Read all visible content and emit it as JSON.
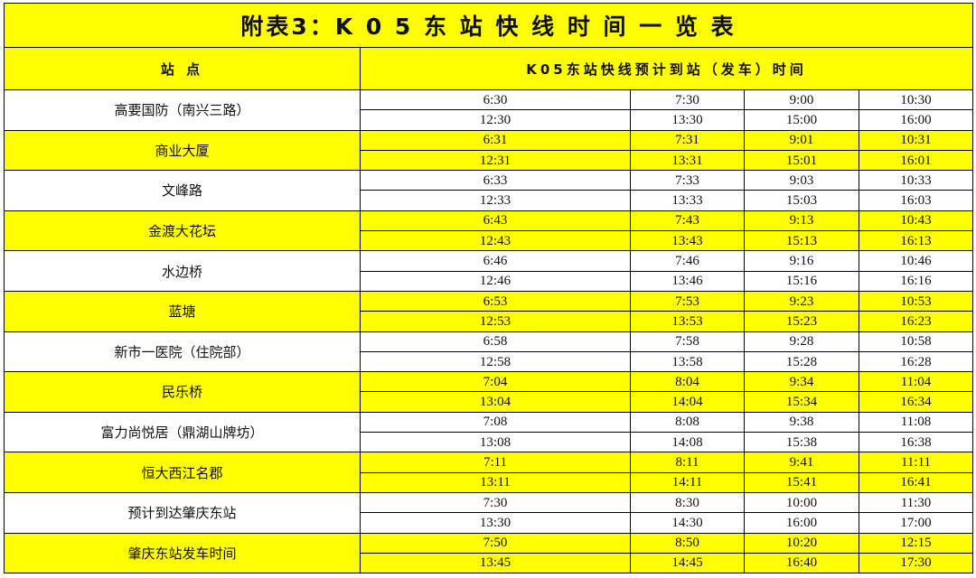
{
  "title": "附表3：K 0 5 东 站 快 线 时 间 一 览 表",
  "header": {
    "station": "站 点",
    "times": "K05东站快线预计到站（发车）时间"
  },
  "colors": {
    "highlight": "#ffff00",
    "plain": "#ffffff"
  },
  "stations": [
    {
      "name": "高要国防（南兴三路）",
      "times": [
        [
          "6:30",
          "7:30",
          "9:00",
          "10:30"
        ],
        [
          "12:30",
          "13:30",
          "15:00",
          "16:00"
        ]
      ]
    },
    {
      "name": "商业大厦",
      "times": [
        [
          "6:31",
          "7:31",
          "9:01",
          "10:31"
        ],
        [
          "12:31",
          "13:31",
          "15:01",
          "16:01"
        ]
      ]
    },
    {
      "name": "文峰路",
      "times": [
        [
          "6:33",
          "7:33",
          "9:03",
          "10:33"
        ],
        [
          "12:33",
          "13:33",
          "15:03",
          "16:03"
        ]
      ]
    },
    {
      "name": "金渡大花坛",
      "times": [
        [
          "6:43",
          "7:43",
          "9:13",
          "10:43"
        ],
        [
          "12:43",
          "13:43",
          "15:13",
          "16:13"
        ]
      ]
    },
    {
      "name": "水边桥",
      "times": [
        [
          "6:46",
          "7:46",
          "9:16",
          "10:46"
        ],
        [
          "12:46",
          "13:46",
          "15:16",
          "16:16"
        ]
      ]
    },
    {
      "name": "蓝塘",
      "times": [
        [
          "6:53",
          "7:53",
          "9:23",
          "10:53"
        ],
        [
          "12:53",
          "13:53",
          "15:23",
          "16:23"
        ]
      ]
    },
    {
      "name": "新市一医院（住院部）",
      "times": [
        [
          "6:58",
          "7:58",
          "9:28",
          "10:58"
        ],
        [
          "12:58",
          "13:58",
          "15:28",
          "16:28"
        ]
      ]
    },
    {
      "name": "民乐桥",
      "times": [
        [
          "7:04",
          "8:04",
          "9:34",
          "11:04"
        ],
        [
          "13:04",
          "14:04",
          "15:34",
          "16:34"
        ]
      ]
    },
    {
      "name": "富力尚悦居（鼎湖山牌坊）",
      "times": [
        [
          "7:08",
          "8:08",
          "9:38",
          "11:08"
        ],
        [
          "13:08",
          "14:08",
          "15:38",
          "16:38"
        ]
      ]
    },
    {
      "name": "恒大西江名郡",
      "times": [
        [
          "7:11",
          "8:11",
          "9:41",
          "11:11"
        ],
        [
          "13:11",
          "14:11",
          "15:41",
          "16:41"
        ]
      ]
    },
    {
      "name": "预计到达肇庆东站",
      "times": [
        [
          "7:30",
          "8:30",
          "10:00",
          "11:30"
        ],
        [
          "13:30",
          "14:30",
          "16:00",
          "17:00"
        ]
      ]
    },
    {
      "name": "肇庆东站发车时间",
      "times": [
        [
          "7:50",
          "8:50",
          "10:20",
          "12:15"
        ],
        [
          "13:45",
          "14:45",
          "16:40",
          "17:30"
        ]
      ]
    }
  ]
}
